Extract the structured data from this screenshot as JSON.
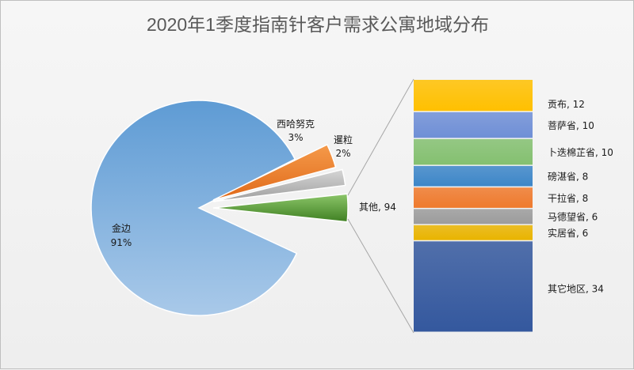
{
  "chart_data": {
    "type": "bar-of-pie",
    "title": "2020年1季度指南针客户需求公寓地域分布",
    "pie": {
      "slices": [
        {
          "name": "金边",
          "percent": "91%",
          "color": "#6ea6d8"
        },
        {
          "name": "西哈努克",
          "percent": "3%",
          "color": "#f08b3c"
        },
        {
          "name": "暹粒",
          "percent": "2%",
          "color": "#bdbdbd"
        },
        {
          "name": "其他",
          "value": 94,
          "color": "#5f9e3a"
        }
      ]
    },
    "bar": {
      "segments": [
        {
          "name": "贡布",
          "value": 12,
          "color": "#ffc000"
        },
        {
          "name": "菩萨省",
          "value": 10,
          "color": "#6f8fd6"
        },
        {
          "name": "卜迭棉芷省",
          "value": 10,
          "color": "#84c070"
        },
        {
          "name": "磅湛省",
          "value": 8,
          "color": "#3d86c8"
        },
        {
          "name": "干拉省",
          "value": 8,
          "color": "#ef7a2d"
        },
        {
          "name": "马德望省",
          "value": 6,
          "color": "#9c9c9c"
        },
        {
          "name": "实居省",
          "value": 6,
          "color": "#e9b400"
        },
        {
          "name": "其它地区",
          "value": 34,
          "color": "#34589e"
        }
      ]
    }
  }
}
